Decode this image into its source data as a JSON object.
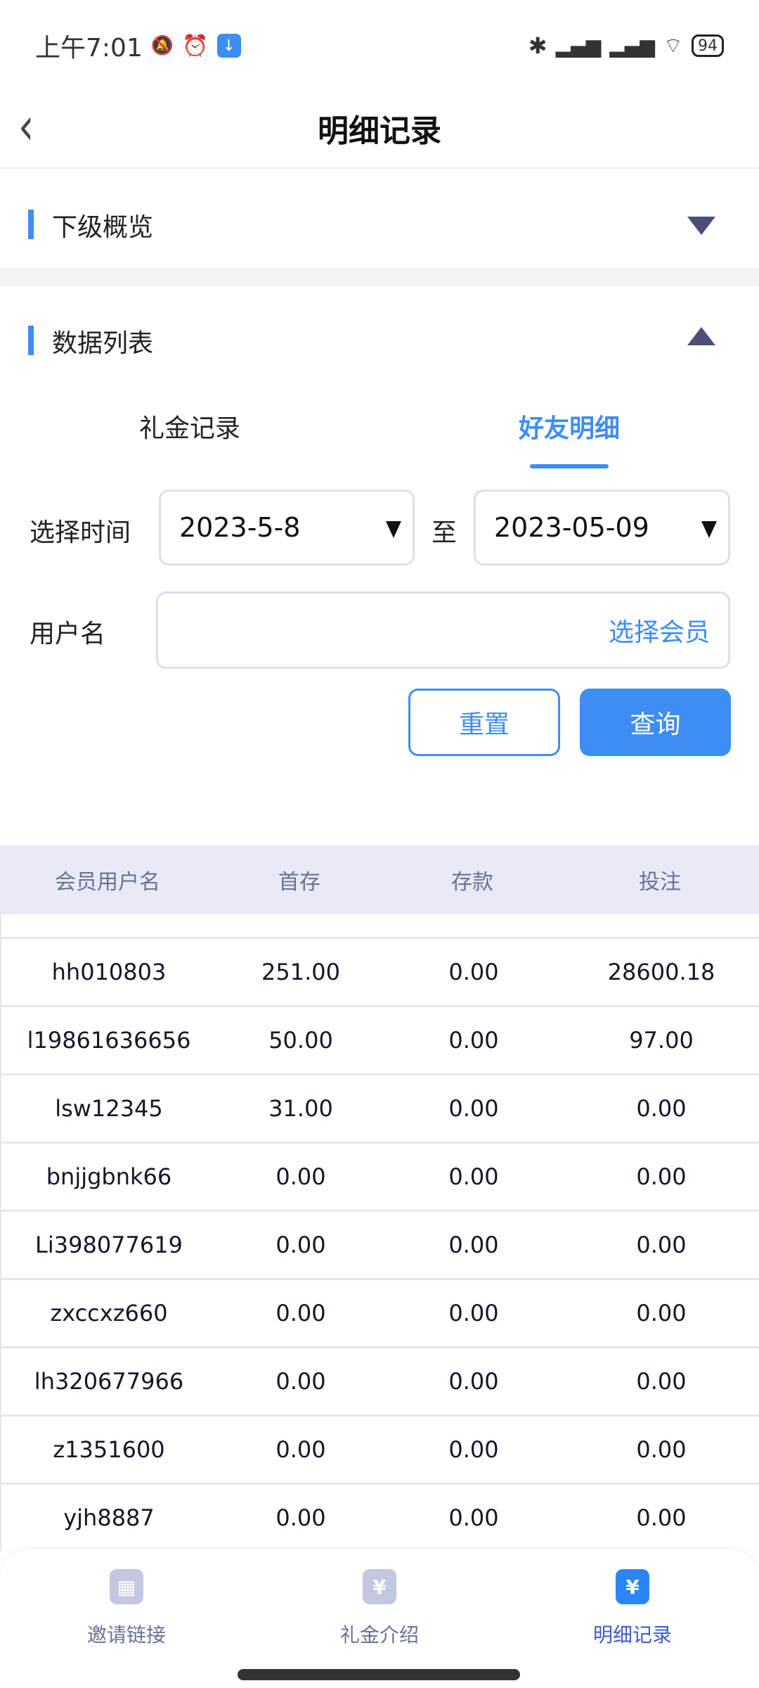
{
  "status_bar": {
    "time": "上午7:01",
    "battery": "94",
    "icons": [
      "mute-icon",
      "alarm-icon",
      "download-icon",
      "bluetooth-icon",
      "signal-icon",
      "signal-icon",
      "wifi-icon",
      "battery-icon"
    ]
  },
  "header": {
    "title": "明细记录",
    "back_icon": "chevron-left-icon"
  },
  "sections": {
    "overview": {
      "label": "下级概览",
      "state": "collapsed"
    },
    "data_list": {
      "label": "数据列表",
      "state": "expanded"
    }
  },
  "tabs": [
    {
      "label": "礼金记录",
      "active": false
    },
    {
      "label": "好友明细",
      "active": true
    }
  ],
  "filters": {
    "time_label": "选择时间",
    "start_date": "2023-5-8",
    "to_label": "至",
    "end_date": "2023-05-09",
    "username_label": "用户名",
    "username_placeholder": "选择会员",
    "reset_label": "重置",
    "query_label": "查询"
  },
  "table": {
    "columns": [
      "会员用户名",
      "首存",
      "存款",
      "投注"
    ],
    "rows": [
      [
        "hh010803",
        "251.00",
        "0.00",
        "28600.18"
      ],
      [
        "l19861636656",
        "50.00",
        "0.00",
        "97.00"
      ],
      [
        "lsw12345",
        "31.00",
        "0.00",
        "0.00"
      ],
      [
        "bnjjgbnk66",
        "0.00",
        "0.00",
        "0.00"
      ],
      [
        "Li398077619",
        "0.00",
        "0.00",
        "0.00"
      ],
      [
        "zxccxz660",
        "0.00",
        "0.00",
        "0.00"
      ],
      [
        "lh320677966",
        "0.00",
        "0.00",
        "0.00"
      ],
      [
        "z1351600",
        "0.00",
        "0.00",
        "0.00"
      ],
      [
        "yjh8887",
        "0.00",
        "0.00",
        "0.00"
      ]
    ]
  },
  "bottom_nav": [
    {
      "label": "邀请链接",
      "icon": "qr-code-icon",
      "active": false
    },
    {
      "label": "礼金介绍",
      "icon": "coupon-icon",
      "active": false
    },
    {
      "label": "明细记录",
      "icon": "clipboard-yen-icon",
      "active": true
    }
  ],
  "colors": {
    "accent": "#3d8df5",
    "text": "#1a1a2e",
    "table_header_bg": "#e8ebf6",
    "nav_inactive": "#c3c7df",
    "muted": "#6a7199"
  }
}
